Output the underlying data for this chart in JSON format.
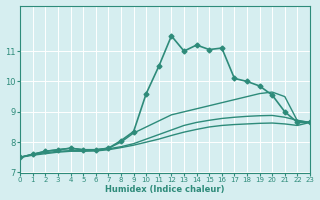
{
  "xlabel": "Humidex (Indice chaleur)",
  "ylabel": "",
  "bg_color": "#d6eef0",
  "grid_color": "#ffffff",
  "line_color": "#2e8b7a",
  "xlim": [
    0,
    23
  ],
  "ylim": [
    7,
    12
  ],
  "yticks": [
    7,
    8,
    9,
    10,
    11
  ],
  "xticks": [
    0,
    1,
    2,
    3,
    4,
    5,
    6,
    7,
    8,
    9,
    10,
    11,
    12,
    13,
    14,
    15,
    16,
    17,
    18,
    19,
    20,
    21,
    22,
    23
  ],
  "lines": [
    {
      "x": [
        0,
        1,
        2,
        3,
        4,
        5,
        6,
        7,
        8,
        9,
        10,
        11,
        12,
        13,
        14,
        15,
        16,
        17,
        18,
        19,
        20,
        21,
        22,
        23
      ],
      "y": [
        7.5,
        7.6,
        7.7,
        7.75,
        7.8,
        7.75,
        7.75,
        7.8,
        8.05,
        8.35,
        9.6,
        10.5,
        11.5,
        11.0,
        11.2,
        11.05,
        11.1,
        10.1,
        10.0,
        9.85,
        9.55,
        9.0,
        8.65,
        8.65
      ],
      "marker": "D",
      "markersize": 2.5,
      "linewidth": 1.2
    },
    {
      "x": [
        0,
        1,
        2,
        3,
        4,
        5,
        6,
        7,
        8,
        9,
        10,
        11,
        12,
        13,
        14,
        15,
        16,
        17,
        18,
        19,
        20,
        21,
        22,
        23
      ],
      "y": [
        7.5,
        7.6,
        7.7,
        7.75,
        7.8,
        7.75,
        7.75,
        7.8,
        8.0,
        8.3,
        8.5,
        8.7,
        8.9,
        9.0,
        9.1,
        9.2,
        9.3,
        9.4,
        9.5,
        9.6,
        9.65,
        9.5,
        8.7,
        8.65
      ],
      "marker": null,
      "markersize": 0,
      "linewidth": 1.0
    },
    {
      "x": [
        0,
        1,
        2,
        3,
        4,
        5,
        6,
        7,
        8,
        9,
        10,
        11,
        12,
        13,
        14,
        15,
        16,
        17,
        18,
        19,
        20,
        21,
        22,
        23
      ],
      "y": [
        7.5,
        7.6,
        7.65,
        7.7,
        7.72,
        7.72,
        7.73,
        7.78,
        7.85,
        7.95,
        8.1,
        8.25,
        8.4,
        8.55,
        8.65,
        8.72,
        8.78,
        8.82,
        8.85,
        8.87,
        8.88,
        8.82,
        8.72,
        8.65
      ],
      "marker": null,
      "markersize": 0,
      "linewidth": 1.0
    },
    {
      "x": [
        0,
        1,
        2,
        3,
        4,
        5,
        6,
        7,
        8,
        9,
        10,
        11,
        12,
        13,
        14,
        15,
        16,
        17,
        18,
        19,
        20,
        21,
        22,
        23
      ],
      "y": [
        7.5,
        7.57,
        7.62,
        7.67,
        7.7,
        7.7,
        7.71,
        7.75,
        7.82,
        7.9,
        8.0,
        8.1,
        8.22,
        8.33,
        8.42,
        8.5,
        8.55,
        8.58,
        8.6,
        8.62,
        8.63,
        8.6,
        8.55,
        8.65
      ],
      "marker": null,
      "markersize": 0,
      "linewidth": 1.0
    }
  ]
}
